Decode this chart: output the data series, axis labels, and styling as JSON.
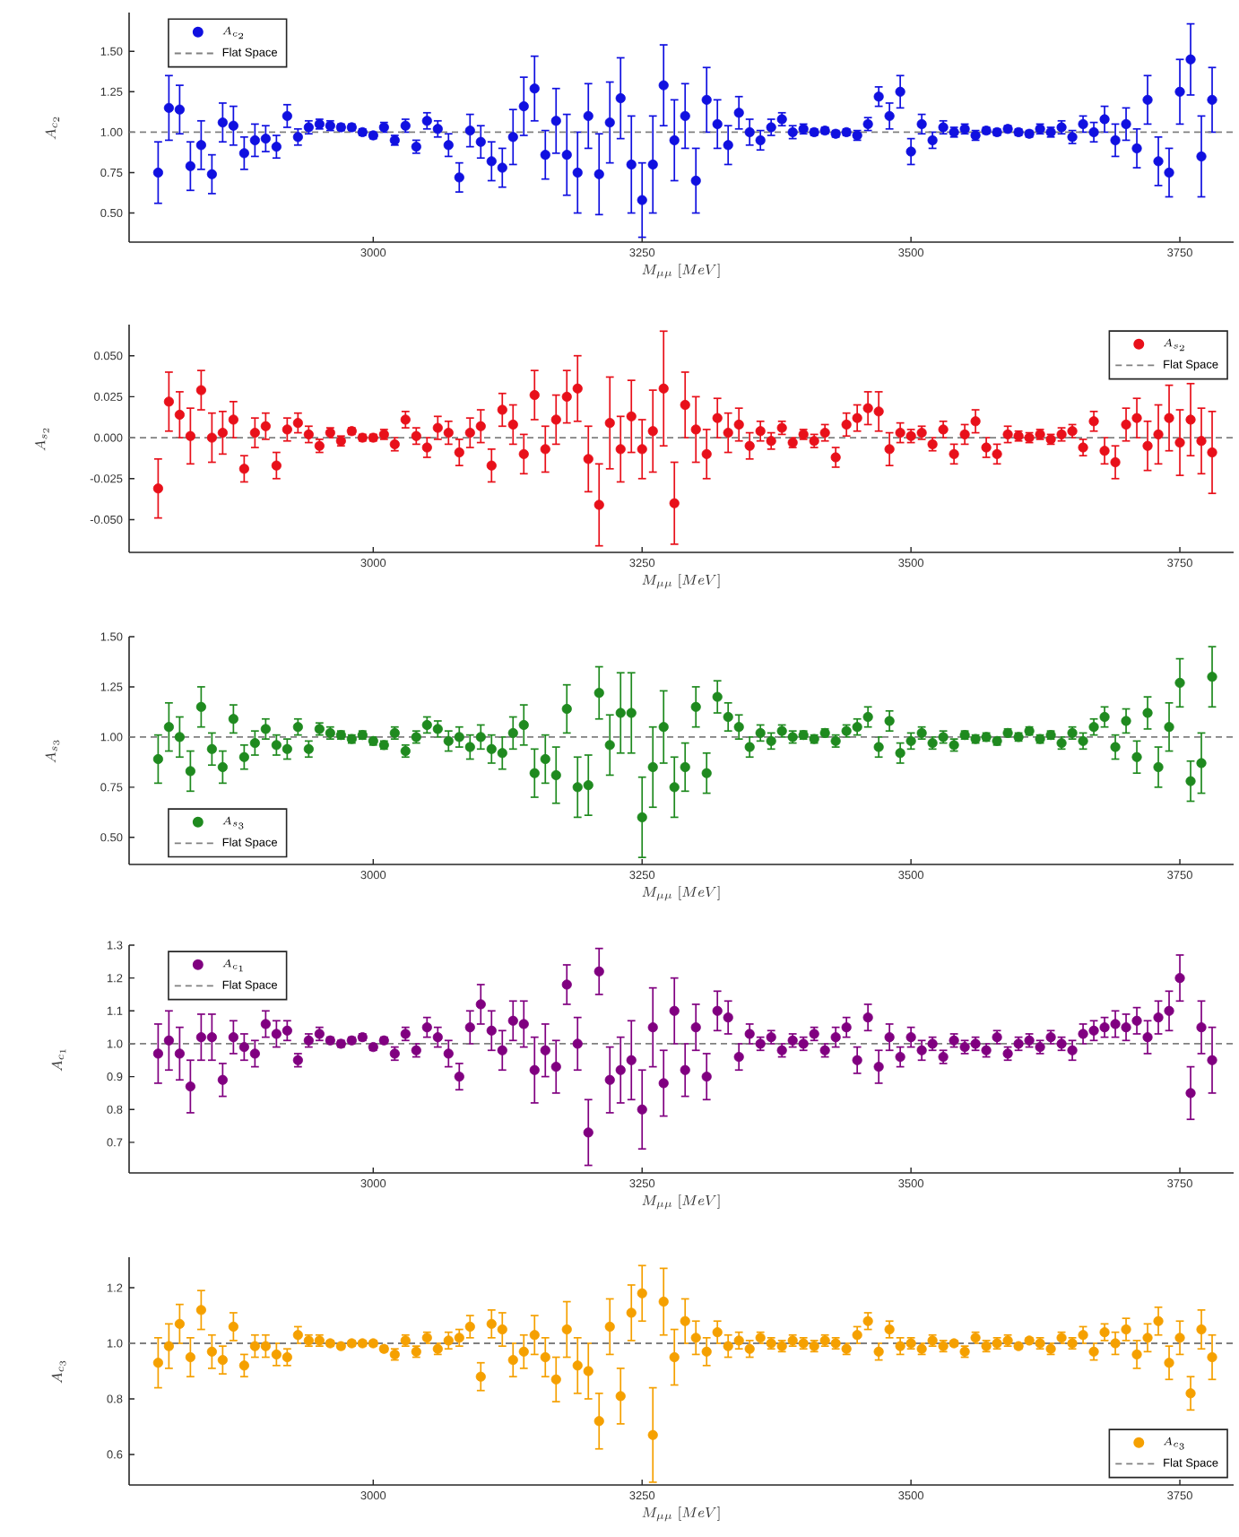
{
  "chart_data": [
    {
      "type": "scatter",
      "legend": "top left",
      "xlabel": "M_{\\mu\\mu}\\ [MeV]",
      "ylabel": "A_{c_2}",
      "xlim": [
        2773,
        3800
      ],
      "xticks": [
        3000,
        3250,
        3500,
        3750
      ],
      "ylim": [
        0.32,
        1.74
      ],
      "yticks": [
        {
          "value": 0.5,
          "label": "0.50"
        },
        {
          "value": 0.75,
          "label": "0.75"
        },
        {
          "value": 1.0,
          "label": "1.00"
        },
        {
          "value": 1.25,
          "label": "1.25"
        },
        {
          "value": 1.5,
          "label": "1.50"
        }
      ],
      "ref_lines": [
        {
          "axis": "y",
          "value": 1,
          "label": "Flat Space",
          "color": "#808080",
          "line_style": "dashed"
        }
      ],
      "x": [
        2800,
        2810,
        2820,
        2830,
        2840,
        2850,
        2860,
        2870,
        2880,
        2890,
        2900,
        2910,
        2920,
        2930,
        2940,
        2950,
        2960,
        2970,
        2980,
        2990,
        3000,
        3010,
        3020,
        3030,
        3040,
        3050,
        3060,
        3070,
        3080,
        3090,
        3100,
        3110,
        3120,
        3130,
        3140,
        3150,
        3160,
        3170,
        3180,
        3190,
        3200,
        3210,
        3220,
        3230,
        3240,
        3250,
        3260,
        3270,
        3280,
        3290,
        3300,
        3310,
        3320,
        3330,
        3340,
        3350,
        3360,
        3370,
        3380,
        3390,
        3400,
        3410,
        3420,
        3430,
        3440,
        3450,
        3460,
        3470,
        3480,
        3490,
        3500,
        3510,
        3520,
        3530,
        3540,
        3550,
        3560,
        3570,
        3580,
        3590,
        3600,
        3610,
        3620,
        3630,
        3640,
        3650,
        3660,
        3670,
        3680,
        3690,
        3700,
        3710,
        3720,
        3730,
        3740,
        3750,
        3760,
        3770,
        3780
      ],
      "series": [
        {
          "name": "A_{c_2}",
          "color": "#1010e0",
          "values": [
            0.75,
            1.15,
            1.14,
            0.79,
            0.92,
            0.74,
            1.06,
            1.04,
            0.87,
            0.95,
            0.96,
            0.91,
            1.1,
            0.97,
            1.03,
            1.05,
            1.04,
            1.03,
            1.03,
            1.0,
            0.98,
            1.03,
            0.95,
            1.04,
            0.91,
            1.07,
            1.02,
            0.92,
            0.72,
            1.01,
            0.94,
            0.82,
            0.78,
            0.97,
            1.16,
            1.27,
            0.86,
            1.07,
            0.86,
            0.75,
            1.1,
            0.74,
            1.06,
            1.21,
            0.8,
            0.58,
            0.8,
            1.29,
            0.95,
            1.1,
            0.7,
            1.2,
            1.05,
            0.92,
            1.12,
            1.0,
            0.95,
            1.03,
            1.08,
            1.0,
            1.02,
            1.0,
            1.01,
            0.99,
            1.0,
            0.98,
            1.05,
            1.22,
            1.1,
            1.25,
            0.88,
            1.05,
            0.95,
            1.03,
            1.0,
            1.02,
            0.98,
            1.01,
            1.0,
            1.02,
            1.0,
            0.99,
            1.02,
            1.0,
            1.03,
            0.97,
            1.05,
            1.0,
            1.08,
            0.95,
            1.05,
            0.9,
            1.2,
            0.82,
            0.75,
            1.25,
            1.45,
            0.85,
            1.2
          ],
          "errors": [
            0.19,
            0.2,
            0.15,
            0.15,
            0.15,
            0.12,
            0.12,
            0.12,
            0.1,
            0.1,
            0.08,
            0.07,
            0.07,
            0.05,
            0.04,
            0.03,
            0.03,
            0.02,
            0.02,
            0.02,
            0.02,
            0.03,
            0.03,
            0.04,
            0.04,
            0.05,
            0.05,
            0.07,
            0.09,
            0.1,
            0.1,
            0.12,
            0.12,
            0.17,
            0.18,
            0.2,
            0.15,
            0.2,
            0.25,
            0.25,
            0.2,
            0.25,
            0.25,
            0.25,
            0.3,
            0.23,
            0.3,
            0.25,
            0.25,
            0.2,
            0.2,
            0.2,
            0.15,
            0.12,
            0.1,
            0.08,
            0.06,
            0.05,
            0.04,
            0.04,
            0.03,
            0.02,
            0.02,
            0.02,
            0.02,
            0.03,
            0.04,
            0.06,
            0.08,
            0.1,
            0.08,
            0.06,
            0.05,
            0.04,
            0.03,
            0.03,
            0.03,
            0.02,
            0.02,
            0.02,
            0.02,
            0.02,
            0.03,
            0.03,
            0.04,
            0.04,
            0.05,
            0.06,
            0.08,
            0.1,
            0.1,
            0.12,
            0.15,
            0.15,
            0.15,
            0.2,
            0.22,
            0.25,
            0.2
          ]
        }
      ]
    },
    {
      "type": "scatter",
      "legend": "top right",
      "xlabel": "M_{\\mu\\mu}\\ [MeV]",
      "ylabel": "A_{s_2}",
      "xlim": [
        2773,
        3800
      ],
      "xticks": [
        3000,
        3250,
        3500,
        3750
      ],
      "ylim": [
        -0.07,
        0.069
      ],
      "yticks": [
        {
          "value": -0.05,
          "label": "-0.050"
        },
        {
          "value": -0.025,
          "label": "-0.025"
        },
        {
          "value": 0,
          "label": "0.000"
        },
        {
          "value": 0.025,
          "label": "0.025"
        },
        {
          "value": 0.05,
          "label": "0.050"
        }
      ],
      "ref_lines": [
        {
          "axis": "y",
          "value": 0,
          "label": "Flat Space",
          "color": "#808080",
          "line_style": "dashed"
        }
      ],
      "x": [
        2800,
        2810,
        2820,
        2830,
        2840,
        2850,
        2860,
        2870,
        2880,
        2890,
        2900,
        2910,
        2920,
        2930,
        2940,
        2950,
        2960,
        2970,
        2980,
        2990,
        3000,
        3010,
        3020,
        3030,
        3040,
        3050,
        3060,
        3070,
        3080,
        3090,
        3100,
        3110,
        3120,
        3130,
        3140,
        3150,
        3160,
        3170,
        3180,
        3190,
        3200,
        3210,
        3220,
        3230,
        3240,
        3250,
        3260,
        3270,
        3280,
        3290,
        3300,
        3310,
        3320,
        3330,
        3340,
        3350,
        3360,
        3370,
        3380,
        3390,
        3400,
        3410,
        3420,
        3430,
        3440,
        3450,
        3460,
        3470,
        3480,
        3490,
        3500,
        3510,
        3520,
        3530,
        3540,
        3550,
        3560,
        3570,
        3580,
        3590,
        3600,
        3610,
        3620,
        3630,
        3640,
        3650,
        3660,
        3670,
        3680,
        3690,
        3700,
        3710,
        3720,
        3730,
        3740,
        3750,
        3760,
        3770,
        3780
      ],
      "series": [
        {
          "name": "A_{s_2}",
          "color": "#e8101a",
          "values": [
            -0.031,
            0.022,
            0.014,
            0.001,
            0.029,
            0,
            0.003,
            0.011,
            -0.019,
            0.003,
            0.007,
            -0.017,
            0.005,
            0.009,
            0.002,
            -0.005,
            0.003,
            -0.002,
            0.004,
            0,
            0,
            0.002,
            -0.004,
            0.011,
            0.001,
            -0.006,
            0.006,
            0.003,
            -0.009,
            0.003,
            0.007,
            -0.017,
            0.017,
            0.008,
            -0.01,
            0.026,
            -0.007,
            0.011,
            0.025,
            0.03,
            -0.013,
            -0.041,
            0.009,
            -0.007,
            0.013,
            -0.007,
            0.004,
            0.03,
            -0.04,
            0.02,
            0.005,
            -0.01,
            0.012,
            0.003,
            0.008,
            -0.005,
            0.004,
            -0.002,
            0.006,
            -0.003,
            0.002,
            -0.002,
            0.003,
            -0.012,
            0.008,
            0.012,
            0.018,
            0.016,
            -0.007,
            0.003,
            0.001,
            0.003,
            -0.004,
            0.005,
            -0.01,
            0.002,
            0.01,
            -0.006,
            -0.01,
            0.002,
            0.001,
            0,
            0.002,
            -0.001,
            0.002,
            0.004,
            -0.006,
            0.01,
            -0.008,
            -0.015,
            0.008,
            0.012,
            -0.005,
            0.002,
            0.012,
            -0.003,
            0.011,
            -0.002,
            -0.009
          ],
          "errors": [
            0.018,
            0.018,
            0.014,
            0.017,
            0.012,
            0.015,
            0.013,
            0.011,
            0.008,
            0.009,
            0.008,
            0.008,
            0.007,
            0.006,
            0.005,
            0.004,
            0.003,
            0.003,
            0.002,
            0.002,
            0.002,
            0.003,
            0.004,
            0.005,
            0.005,
            0.006,
            0.007,
            0.007,
            0.008,
            0.009,
            0.01,
            0.01,
            0.01,
            0.012,
            0.012,
            0.015,
            0.014,
            0.015,
            0.016,
            0.02,
            0.02,
            0.025,
            0.028,
            0.02,
            0.022,
            0.018,
            0.025,
            0.035,
            0.025,
            0.02,
            0.02,
            0.015,
            0.012,
            0.012,
            0.01,
            0.008,
            0.006,
            0.005,
            0.004,
            0.003,
            0.003,
            0.004,
            0.005,
            0.006,
            0.007,
            0.008,
            0.01,
            0.012,
            0.01,
            0.006,
            0.004,
            0.004,
            0.004,
            0.005,
            0.006,
            0.006,
            0.007,
            0.006,
            0.006,
            0.005,
            0.003,
            0.003,
            0.003,
            0.003,
            0.004,
            0.004,
            0.005,
            0.006,
            0.008,
            0.01,
            0.01,
            0.012,
            0.015,
            0.018,
            0.02,
            0.02,
            0.022,
            0.02,
            0.025
          ]
        }
      ]
    },
    {
      "type": "scatter",
      "legend": "bottom left",
      "xlabel": "M_{\\mu\\mu}\\ [MeV]",
      "ylabel": "A_{s_3}",
      "xlim": [
        2773,
        3800
      ],
      "xticks": [
        3000,
        3250,
        3500,
        3750
      ],
      "ylim": [
        0.365,
        1.5
      ],
      "yticks": [
        {
          "value": 0.5,
          "label": "0.50"
        },
        {
          "value": 0.75,
          "label": "0.75"
        },
        {
          "value": 1.0,
          "label": "1.00"
        },
        {
          "value": 1.25,
          "label": "1.25"
        },
        {
          "value": 1.5,
          "label": "1.50"
        }
      ],
      "ref_lines": [
        {
          "axis": "y",
          "value": 1,
          "label": "Flat Space",
          "color": "#808080",
          "line_style": "dashed"
        }
      ],
      "x": [
        2800,
        2810,
        2820,
        2830,
        2840,
        2850,
        2860,
        2870,
        2880,
        2890,
        2900,
        2910,
        2920,
        2930,
        2940,
        2950,
        2960,
        2970,
        2980,
        2990,
        3000,
        3010,
        3020,
        3030,
        3040,
        3050,
        3060,
        3070,
        3080,
        3090,
        3100,
        3110,
        3120,
        3130,
        3140,
        3150,
        3160,
        3170,
        3180,
        3190,
        3200,
        3210,
        3220,
        3230,
        3240,
        3250,
        3260,
        3270,
        3280,
        3290,
        3300,
        3310,
        3320,
        3330,
        3340,
        3350,
        3360,
        3370,
        3380,
        3390,
        3400,
        3410,
        3420,
        3430,
        3440,
        3450,
        3460,
        3470,
        3480,
        3490,
        3500,
        3510,
        3520,
        3530,
        3540,
        3550,
        3560,
        3570,
        3580,
        3590,
        3600,
        3610,
        3620,
        3630,
        3640,
        3650,
        3660,
        3670,
        3680,
        3690,
        3700,
        3710,
        3720,
        3730,
        3740,
        3750,
        3760,
        3770,
        3780
      ],
      "series": [
        {
          "name": "A_{s_3}",
          "color": "#1f8a1f",
          "values": [
            0.89,
            1.05,
            1.0,
            0.83,
            1.15,
            0.94,
            0.85,
            1.09,
            0.9,
            0.97,
            1.04,
            0.96,
            0.94,
            1.05,
            0.94,
            1.04,
            1.02,
            1.01,
            0.99,
            1.01,
            0.98,
            0.96,
            1.02,
            0.93,
            1.0,
            1.06,
            1.04,
            0.98,
            1.0,
            0.95,
            1.0,
            0.94,
            0.92,
            1.02,
            1.06,
            0.82,
            0.89,
            0.81,
            1.14,
            0.75,
            0.76,
            1.22,
            0.96,
            1.12,
            1.12,
            0.6,
            0.85,
            1.05,
            0.75,
            0.85,
            1.15,
            0.82,
            1.2,
            1.1,
            1.05,
            0.95,
            1.02,
            0.98,
            1.03,
            1.0,
            1.01,
            0.99,
            1.02,
            0.98,
            1.03,
            1.05,
            1.1,
            0.95,
            1.08,
            0.92,
            0.98,
            1.02,
            0.97,
            1.0,
            0.96,
            1.01,
            0.99,
            1.0,
            0.98,
            1.02,
            1.0,
            1.03,
            0.99,
            1.01,
            0.97,
            1.02,
            0.98,
            1.05,
            1.1,
            0.95,
            1.08,
            0.9,
            1.12,
            0.85,
            1.05,
            1.27,
            0.78,
            0.87,
            1.3
          ],
          "errors": [
            0.12,
            0.12,
            0.1,
            0.1,
            0.1,
            0.08,
            0.08,
            0.07,
            0.06,
            0.06,
            0.05,
            0.05,
            0.05,
            0.04,
            0.04,
            0.03,
            0.03,
            0.02,
            0.02,
            0.02,
            0.02,
            0.02,
            0.03,
            0.03,
            0.03,
            0.04,
            0.04,
            0.05,
            0.05,
            0.06,
            0.06,
            0.07,
            0.08,
            0.08,
            0.1,
            0.12,
            0.12,
            0.14,
            0.12,
            0.15,
            0.15,
            0.13,
            0.15,
            0.2,
            0.2,
            0.2,
            0.2,
            0.18,
            0.15,
            0.12,
            0.1,
            0.1,
            0.08,
            0.07,
            0.06,
            0.05,
            0.04,
            0.04,
            0.03,
            0.03,
            0.02,
            0.02,
            0.02,
            0.03,
            0.03,
            0.04,
            0.05,
            0.05,
            0.05,
            0.05,
            0.04,
            0.03,
            0.03,
            0.03,
            0.03,
            0.02,
            0.02,
            0.02,
            0.02,
            0.02,
            0.02,
            0.02,
            0.02,
            0.02,
            0.03,
            0.03,
            0.04,
            0.04,
            0.05,
            0.06,
            0.06,
            0.08,
            0.08,
            0.1,
            0.12,
            0.12,
            0.1,
            0.15,
            0.15
          ]
        }
      ]
    },
    {
      "type": "scatter",
      "legend": "top left",
      "xlabel": "M_{\\mu\\mu}\\ [MeV]",
      "ylabel": "A_{c_1}",
      "xlim": [
        2773,
        3800
      ],
      "xticks": [
        3000,
        3250,
        3500,
        3750
      ],
      "ylim": [
        0.607,
        1.3
      ],
      "yticks": [
        {
          "value": 0.7,
          "label": "0.7"
        },
        {
          "value": 0.8,
          "label": "0.8"
        },
        {
          "value": 0.9,
          "label": "0.9"
        },
        {
          "value": 1.0,
          "label": "1.0"
        },
        {
          "value": 1.1,
          "label": "1.1"
        },
        {
          "value": 1.2,
          "label": "1.2"
        },
        {
          "value": 1.3,
          "label": "1.3"
        }
      ],
      "ref_lines": [
        {
          "axis": "y",
          "value": 1,
          "label": "Flat Space",
          "color": "#808080",
          "line_style": "dashed"
        }
      ],
      "x": [
        2800,
        2810,
        2820,
        2830,
        2840,
        2850,
        2860,
        2870,
        2880,
        2890,
        2900,
        2910,
        2920,
        2930,
        2940,
        2950,
        2960,
        2970,
        2980,
        2990,
        3000,
        3010,
        3020,
        3030,
        3040,
        3050,
        3060,
        3070,
        3080,
        3090,
        3100,
        3110,
        3120,
        3130,
        3140,
        3150,
        3160,
        3170,
        3180,
        3190,
        3200,
        3210,
        3220,
        3230,
        3240,
        3250,
        3260,
        3270,
        3280,
        3290,
        3300,
        3310,
        3320,
        3330,
        3340,
        3350,
        3360,
        3370,
        3380,
        3390,
        3400,
        3410,
        3420,
        3430,
        3440,
        3450,
        3460,
        3470,
        3480,
        3490,
        3500,
        3510,
        3520,
        3530,
        3540,
        3550,
        3560,
        3570,
        3580,
        3590,
        3600,
        3610,
        3620,
        3630,
        3640,
        3650,
        3660,
        3670,
        3680,
        3690,
        3700,
        3710,
        3720,
        3730,
        3740,
        3750,
        3760,
        3770,
        3780
      ],
      "series": [
        {
          "name": "A_{c_1}",
          "color": "#800080",
          "values": [
            0.97,
            1.01,
            0.97,
            0.87,
            1.02,
            1.02,
            0.89,
            1.02,
            0.99,
            0.97,
            1.06,
            1.03,
            1.04,
            0.95,
            1.01,
            1.03,
            1.01,
            1.0,
            1.01,
            1.02,
            0.99,
            1.01,
            0.97,
            1.03,
            0.98,
            1.05,
            1.02,
            0.97,
            0.9,
            1.05,
            1.12,
            1.04,
            0.98,
            1.07,
            1.06,
            0.92,
            0.98,
            0.93,
            1.18,
            1.0,
            0.73,
            1.22,
            0.89,
            0.92,
            0.95,
            0.8,
            1.05,
            0.88,
            1.1,
            0.92,
            1.05,
            0.9,
            1.1,
            1.08,
            0.96,
            1.03,
            1.0,
            1.02,
            0.98,
            1.01,
            1.0,
            1.03,
            0.98,
            1.02,
            1.05,
            0.95,
            1.08,
            0.93,
            1.02,
            0.96,
            1.02,
            0.98,
            1.0,
            0.96,
            1.01,
            0.99,
            1.0,
            0.98,
            1.02,
            0.97,
            1.0,
            1.01,
            0.99,
            1.02,
            1.0,
            0.98,
            1.03,
            1.04,
            1.05,
            1.06,
            1.05,
            1.07,
            1.02,
            1.08,
            1.1,
            1.2,
            0.85,
            1.05,
            0.95
          ],
          "errors": [
            0.09,
            0.09,
            0.08,
            0.08,
            0.07,
            0.07,
            0.05,
            0.05,
            0.04,
            0.04,
            0.04,
            0.04,
            0.03,
            0.02,
            0.02,
            0.02,
            0.01,
            0.01,
            0.01,
            0.01,
            0.01,
            0.01,
            0.02,
            0.02,
            0.02,
            0.03,
            0.03,
            0.04,
            0.04,
            0.05,
            0.06,
            0.06,
            0.06,
            0.06,
            0.07,
            0.1,
            0.08,
            0.08,
            0.06,
            0.08,
            0.1,
            0.07,
            0.1,
            0.1,
            0.12,
            0.12,
            0.12,
            0.1,
            0.1,
            0.08,
            0.07,
            0.07,
            0.06,
            0.05,
            0.04,
            0.03,
            0.02,
            0.02,
            0.02,
            0.02,
            0.02,
            0.02,
            0.02,
            0.03,
            0.03,
            0.04,
            0.04,
            0.05,
            0.04,
            0.03,
            0.03,
            0.03,
            0.02,
            0.02,
            0.02,
            0.02,
            0.02,
            0.02,
            0.02,
            0.02,
            0.02,
            0.02,
            0.02,
            0.02,
            0.02,
            0.03,
            0.03,
            0.03,
            0.03,
            0.04,
            0.04,
            0.04,
            0.05,
            0.05,
            0.06,
            0.07,
            0.08,
            0.08,
            0.1
          ]
        }
      ]
    },
    {
      "type": "scatter",
      "legend": "bottom right",
      "xlabel": "M_{\\mu\\mu}\\ [MeV]",
      "ylabel": "A_{c_3}",
      "xlim": [
        2773,
        3800
      ],
      "xticks": [
        3000,
        3250,
        3500,
        3750
      ],
      "ylim": [
        0.49,
        1.31
      ],
      "yticks": [
        {
          "value": 0.6,
          "label": "0.6"
        },
        {
          "value": 0.8,
          "label": "0.8"
        },
        {
          "value": 1.0,
          "label": "1.0"
        },
        {
          "value": 1.2,
          "label": "1.2"
        }
      ],
      "ref_lines": [
        {
          "axis": "y",
          "value": 1,
          "label": "Flat Space",
          "color": "#808080",
          "line_style": "dashed"
        }
      ],
      "x": [
        2800,
        2810,
        2820,
        2830,
        2840,
        2850,
        2860,
        2870,
        2880,
        2890,
        2900,
        2910,
        2920,
        2930,
        2940,
        2950,
        2960,
        2970,
        2980,
        2990,
        3000,
        3010,
        3020,
        3030,
        3040,
        3050,
        3060,
        3070,
        3080,
        3090,
        3100,
        3110,
        3120,
        3130,
        3140,
        3150,
        3160,
        3170,
        3180,
        3190,
        3200,
        3210,
        3220,
        3230,
        3240,
        3250,
        3260,
        3270,
        3280,
        3290,
        3300,
        3310,
        3320,
        3330,
        3340,
        3350,
        3360,
        3370,
        3380,
        3390,
        3400,
        3410,
        3420,
        3430,
        3440,
        3450,
        3460,
        3470,
        3480,
        3490,
        3500,
        3510,
        3520,
        3530,
        3540,
        3550,
        3560,
        3570,
        3580,
        3590,
        3600,
        3610,
        3620,
        3630,
        3640,
        3650,
        3660,
        3670,
        3680,
        3690,
        3700,
        3710,
        3720,
        3730,
        3740,
        3750,
        3760,
        3770,
        3780
      ],
      "series": [
        {
          "name": "A_{c_3}",
          "color": "#f5a000",
          "values": [
            0.93,
            0.99,
            1.07,
            0.95,
            1.12,
            0.97,
            0.94,
            1.06,
            0.92,
            0.99,
            0.99,
            0.96,
            0.95,
            1.03,
            1.01,
            1.01,
            1.0,
            0.99,
            1.0,
            1.0,
            1.0,
            0.98,
            0.96,
            1.01,
            0.97,
            1.02,
            0.98,
            1.01,
            1.02,
            1.06,
            0.88,
            1.07,
            1.05,
            0.94,
            0.97,
            1.03,
            0.95,
            0.87,
            1.05,
            0.92,
            0.9,
            0.72,
            1.06,
            0.81,
            1.11,
            1.18,
            0.67,
            1.15,
            0.95,
            1.08,
            1.02,
            0.97,
            1.04,
            0.99,
            1.01,
            0.98,
            1.02,
            1.0,
            0.99,
            1.01,
            1.0,
            0.99,
            1.01,
            1.0,
            0.98,
            1.03,
            1.08,
            0.97,
            1.05,
            0.99,
            1.0,
            0.98,
            1.01,
            0.99,
            1.0,
            0.97,
            1.02,
            0.99,
            1.0,
            1.01,
            0.99,
            1.01,
            1.0,
            0.98,
            1.02,
            1.0,
            1.03,
            0.97,
            1.04,
            1.0,
            1.05,
            0.96,
            1.02,
            1.08,
            0.93,
            1.02,
            0.82,
            1.05,
            0.95
          ],
          "errors": [
            0.09,
            0.08,
            0.07,
            0.07,
            0.07,
            0.06,
            0.05,
            0.05,
            0.04,
            0.04,
            0.04,
            0.04,
            0.03,
            0.03,
            0.02,
            0.02,
            0.01,
            0.01,
            0.01,
            0.01,
            0.01,
            0.01,
            0.02,
            0.02,
            0.02,
            0.02,
            0.02,
            0.03,
            0.03,
            0.04,
            0.05,
            0.05,
            0.06,
            0.06,
            0.06,
            0.07,
            0.07,
            0.08,
            0.1,
            0.1,
            0.1,
            0.1,
            0.1,
            0.1,
            0.1,
            0.1,
            0.17,
            0.12,
            0.1,
            0.08,
            0.06,
            0.05,
            0.04,
            0.04,
            0.03,
            0.03,
            0.02,
            0.02,
            0.02,
            0.02,
            0.02,
            0.02,
            0.02,
            0.02,
            0.02,
            0.03,
            0.03,
            0.03,
            0.03,
            0.03,
            0.02,
            0.02,
            0.02,
            0.02,
            0.01,
            0.02,
            0.02,
            0.02,
            0.02,
            0.02,
            0.01,
            0.01,
            0.02,
            0.02,
            0.02,
            0.02,
            0.03,
            0.03,
            0.03,
            0.04,
            0.04,
            0.05,
            0.05,
            0.05,
            0.06,
            0.06,
            0.06,
            0.07,
            0.08
          ]
        }
      ]
    }
  ]
}
